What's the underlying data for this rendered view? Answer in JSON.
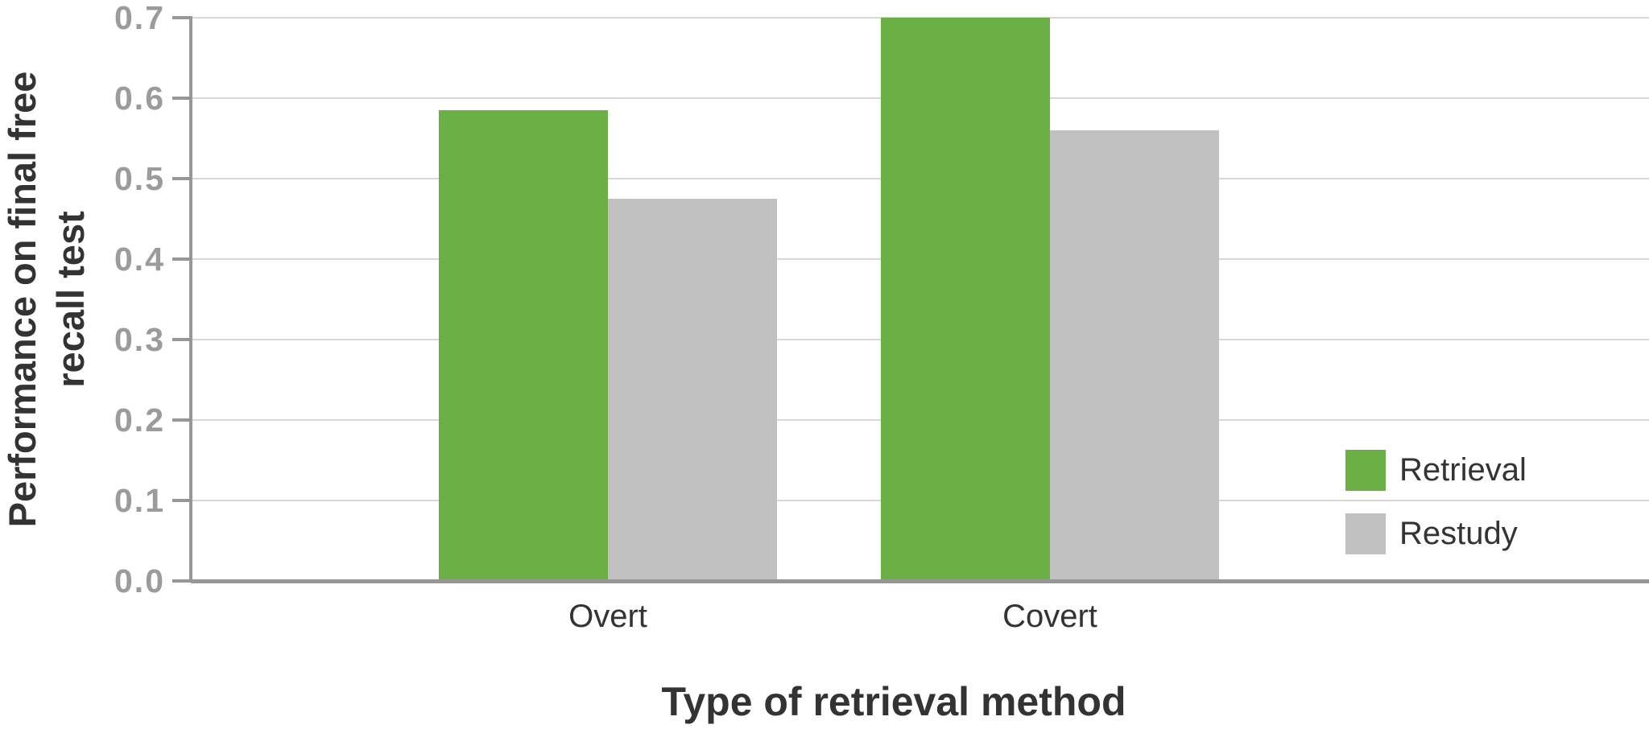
{
  "chart_data": {
    "type": "bar",
    "title": "",
    "xlabel": "Type of retrieval method",
    "ylabel": "Performance on final free recall test",
    "ylabel_lines": [
      "Performance on final free",
      "recall test"
    ],
    "categories": [
      "Overt",
      "Covert"
    ],
    "series": [
      {
        "name": "Retrieval",
        "color": "#6ab045",
        "values": [
          0.585,
          0.7
        ]
      },
      {
        "name": "Restudy",
        "color": "#c0c0c0",
        "values": [
          0.475,
          0.56
        ]
      }
    ],
    "y_axis": {
      "min": 0.0,
      "max": 0.7,
      "step": 0.1,
      "tick_labels": [
        "0.0",
        "0.1",
        "0.2",
        "0.3",
        "0.4",
        "0.5",
        "0.6",
        "0.7"
      ]
    },
    "grid": true,
    "legend_position": "right-middle",
    "colors": {
      "gridline": "#d8d8d8",
      "axis": "#979797",
      "tick_text": "#9b9b9b",
      "dark_text": "#333333"
    }
  }
}
